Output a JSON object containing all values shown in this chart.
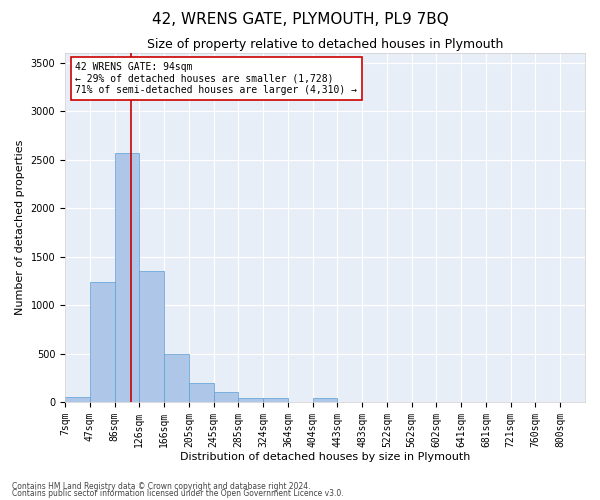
{
  "title": "42, WRENS GATE, PLYMOUTH, PL9 7BQ",
  "subtitle": "Size of property relative to detached houses in Plymouth",
  "xlabel": "Distribution of detached houses by size in Plymouth",
  "ylabel": "Number of detached properties",
  "bin_labels": [
    "7sqm",
    "47sqm",
    "86sqm",
    "126sqm",
    "166sqm",
    "205sqm",
    "245sqm",
    "285sqm",
    "324sqm",
    "364sqm",
    "404sqm",
    "443sqm",
    "483sqm",
    "522sqm",
    "562sqm",
    "602sqm",
    "641sqm",
    "681sqm",
    "721sqm",
    "760sqm",
    "800sqm"
  ],
  "bar_values": [
    50,
    1240,
    2570,
    1350,
    500,
    195,
    100,
    45,
    40,
    0,
    45,
    0,
    0,
    0,
    0,
    0,
    0,
    0,
    0,
    0,
    0
  ],
  "bar_color": "#aec6e8",
  "bar_edge_color": "#5a9fd4",
  "vline_x": 2.65,
  "vline_color": "#cc0000",
  "annotation_text": "42 WRENS GATE: 94sqm\n← 29% of detached houses are smaller (1,728)\n71% of semi-detached houses are larger (4,310) →",
  "annotation_box_color": "#ffffff",
  "annotation_box_edge": "#cc0000",
  "ylim": [
    0,
    3600
  ],
  "yticks": [
    0,
    500,
    1000,
    1500,
    2000,
    2500,
    3000,
    3500
  ],
  "background_color": "#e8eef7",
  "grid_color": "#ffffff",
  "title_fontsize": 11,
  "subtitle_fontsize": 9,
  "axis_label_fontsize": 8,
  "tick_fontsize": 7,
  "annot_fontsize": 7,
  "footnote_fontsize": 5.5,
  "footnote1": "Contains HM Land Registry data © Crown copyright and database right 2024.",
  "footnote2": "Contains public sector information licensed under the Open Government Licence v3.0."
}
